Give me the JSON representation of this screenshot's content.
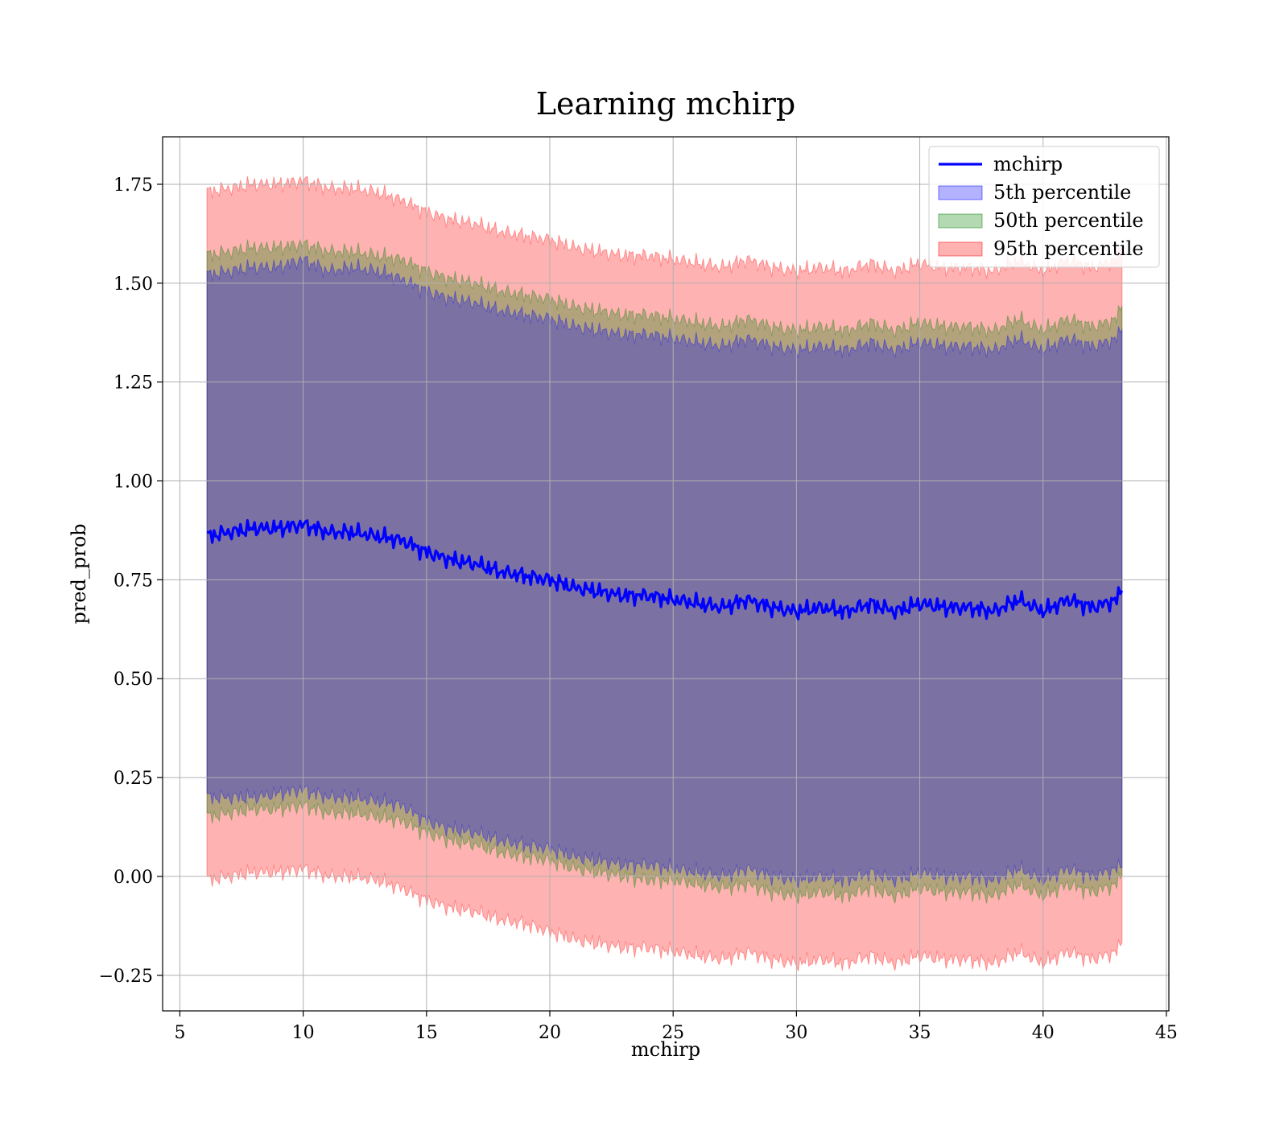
{
  "chart_data": {
    "type": "line",
    "title": "Learning mchirp",
    "xlabel": "mchirp",
    "ylabel": "pred_prob",
    "xlim": [
      4.3,
      45.1
    ],
    "ylim": [
      -0.34,
      1.87
    ],
    "xticks": [
      5,
      10,
      15,
      20,
      25,
      30,
      35,
      40,
      45
    ],
    "yticks": [
      -0.25,
      0.0,
      0.25,
      0.5,
      0.75,
      1.0,
      1.25,
      1.5,
      1.75
    ],
    "ytick_labels": [
      "−0.25",
      "0.00",
      "0.25",
      "0.50",
      "0.75",
      "1.00",
      "1.25",
      "1.50",
      "1.75"
    ],
    "grid": true,
    "legend_position": "top-right",
    "colors": {
      "mchirp": "#0000ff",
      "p5": "#0000ff",
      "p50": "#008000",
      "p95": "#ff0000"
    },
    "x": [
      6.1,
      7,
      8,
      9,
      10,
      11,
      12,
      13,
      14,
      15,
      16,
      17,
      18,
      19,
      20,
      21,
      22,
      23,
      24,
      25,
      26,
      27,
      28,
      29,
      30,
      31,
      32,
      33,
      34,
      35,
      36,
      37,
      38,
      39,
      40,
      41,
      42,
      43,
      43.2
    ],
    "series": [
      {
        "name": "mchirp",
        "kind": "line",
        "values": [
          0.86,
          0.87,
          0.88,
          0.88,
          0.89,
          0.87,
          0.87,
          0.86,
          0.85,
          0.82,
          0.8,
          0.79,
          0.77,
          0.76,
          0.75,
          0.73,
          0.72,
          0.71,
          0.71,
          0.7,
          0.69,
          0.68,
          0.7,
          0.68,
          0.67,
          0.68,
          0.67,
          0.69,
          0.67,
          0.69,
          0.68,
          0.68,
          0.67,
          0.7,
          0.67,
          0.7,
          0.68,
          0.7,
          0.73
        ]
      },
      {
        "name": "5th percentile",
        "kind": "band",
        "lower": [
          0.2,
          0.2,
          0.2,
          0.21,
          0.22,
          0.2,
          0.2,
          0.19,
          0.18,
          0.14,
          0.12,
          0.11,
          0.09,
          0.08,
          0.07,
          0.05,
          0.04,
          0.03,
          0.03,
          0.02,
          0.01,
          0.0,
          0.02,
          0.0,
          -0.01,
          0.0,
          -0.01,
          0.01,
          -0.01,
          0.01,
          0.0,
          0.0,
          -0.01,
          0.02,
          -0.01,
          0.02,
          0.0,
          0.02,
          0.03
        ],
        "upper": [
          1.52,
          1.53,
          1.54,
          1.54,
          1.56,
          1.53,
          1.54,
          1.53,
          1.51,
          1.48,
          1.46,
          1.45,
          1.43,
          1.42,
          1.41,
          1.39,
          1.38,
          1.37,
          1.37,
          1.36,
          1.35,
          1.34,
          1.36,
          1.34,
          1.33,
          1.34,
          1.33,
          1.35,
          1.33,
          1.35,
          1.34,
          1.34,
          1.33,
          1.36,
          1.33,
          1.36,
          1.34,
          1.36,
          1.39
        ]
      },
      {
        "name": "50th percentile",
        "kind": "band",
        "lower": [
          0.15,
          0.16,
          0.17,
          0.17,
          0.18,
          0.16,
          0.16,
          0.15,
          0.14,
          0.11,
          0.09,
          0.08,
          0.06,
          0.05,
          0.04,
          0.02,
          0.01,
          0.0,
          -0.01,
          -0.01,
          -0.02,
          -0.03,
          -0.02,
          -0.04,
          -0.05,
          -0.04,
          -0.05,
          -0.03,
          -0.05,
          -0.03,
          -0.04,
          -0.04,
          -0.05,
          -0.02,
          -0.05,
          -0.02,
          -0.04,
          -0.02,
          0.01
        ],
        "upper": [
          1.57,
          1.58,
          1.59,
          1.59,
          1.6,
          1.58,
          1.58,
          1.57,
          1.56,
          1.53,
          1.51,
          1.5,
          1.48,
          1.47,
          1.46,
          1.44,
          1.43,
          1.42,
          1.42,
          1.41,
          1.4,
          1.39,
          1.41,
          1.39,
          1.38,
          1.39,
          1.38,
          1.4,
          1.38,
          1.4,
          1.39,
          1.39,
          1.38,
          1.41,
          1.38,
          1.41,
          1.39,
          1.41,
          1.45
        ]
      },
      {
        "name": "95th percentile",
        "kind": "band",
        "lower": [
          -0.01,
          0.0,
          0.01,
          0.01,
          0.02,
          0.0,
          0.0,
          -0.01,
          -0.03,
          -0.06,
          -0.08,
          -0.09,
          -0.11,
          -0.12,
          -0.14,
          -0.16,
          -0.17,
          -0.18,
          -0.18,
          -0.19,
          -0.2,
          -0.21,
          -0.19,
          -0.21,
          -0.22,
          -0.21,
          -0.22,
          -0.2,
          -0.22,
          -0.2,
          -0.21,
          -0.21,
          -0.22,
          -0.19,
          -0.22,
          -0.19,
          -0.21,
          -0.19,
          -0.16
        ],
        "upper": [
          1.73,
          1.74,
          1.75,
          1.75,
          1.76,
          1.74,
          1.74,
          1.73,
          1.71,
          1.68,
          1.66,
          1.65,
          1.63,
          1.62,
          1.61,
          1.59,
          1.58,
          1.57,
          1.57,
          1.56,
          1.55,
          1.54,
          1.56,
          1.54,
          1.53,
          1.54,
          1.53,
          1.55,
          1.53,
          1.55,
          1.54,
          1.54,
          1.53,
          1.56,
          1.53,
          1.56,
          1.54,
          1.56,
          1.6
        ]
      }
    ]
  }
}
